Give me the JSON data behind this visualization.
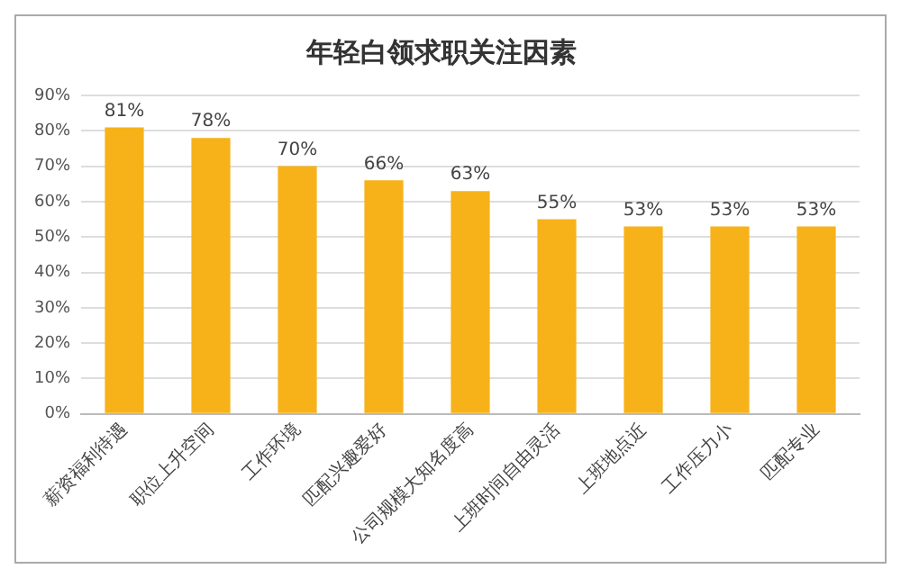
{
  "chart_data": {
    "type": "bar",
    "title": "年轻白领求职关注因素",
    "categories": [
      "薪资福利待遇",
      "职位上升空间",
      "工作环境",
      "匹配兴趣爱好",
      "公司规模大知名度高",
      "上班时间自由灵活",
      "上班地点近",
      "工作压力小",
      "匹配专业"
    ],
    "series": [
      {
        "color": "#f7b219",
        "values": [
          81,
          78,
          70,
          66,
          63,
          55,
          53,
          53,
          53
        ],
        "value_labels": [
          "81%",
          "78%",
          "70%",
          "66%",
          "63%",
          "55%",
          "53%",
          "53%",
          "53%"
        ]
      }
    ],
    "ylim": [
      0,
      90
    ],
    "yticks": [
      {
        "value": 0,
        "label": "0%"
      },
      {
        "value": 10,
        "label": "10%"
      },
      {
        "value": 20,
        "label": "20%"
      },
      {
        "value": 30,
        "label": "30%"
      },
      {
        "value": 40,
        "label": "40%"
      },
      {
        "value": 50,
        "label": "50%"
      },
      {
        "value": 60,
        "label": "60%"
      },
      {
        "value": 70,
        "label": "70%"
      },
      {
        "value": 80,
        "label": "80%"
      },
      {
        "value": 90,
        "label": "90%"
      }
    ],
    "grid": "y",
    "legend": false
  }
}
